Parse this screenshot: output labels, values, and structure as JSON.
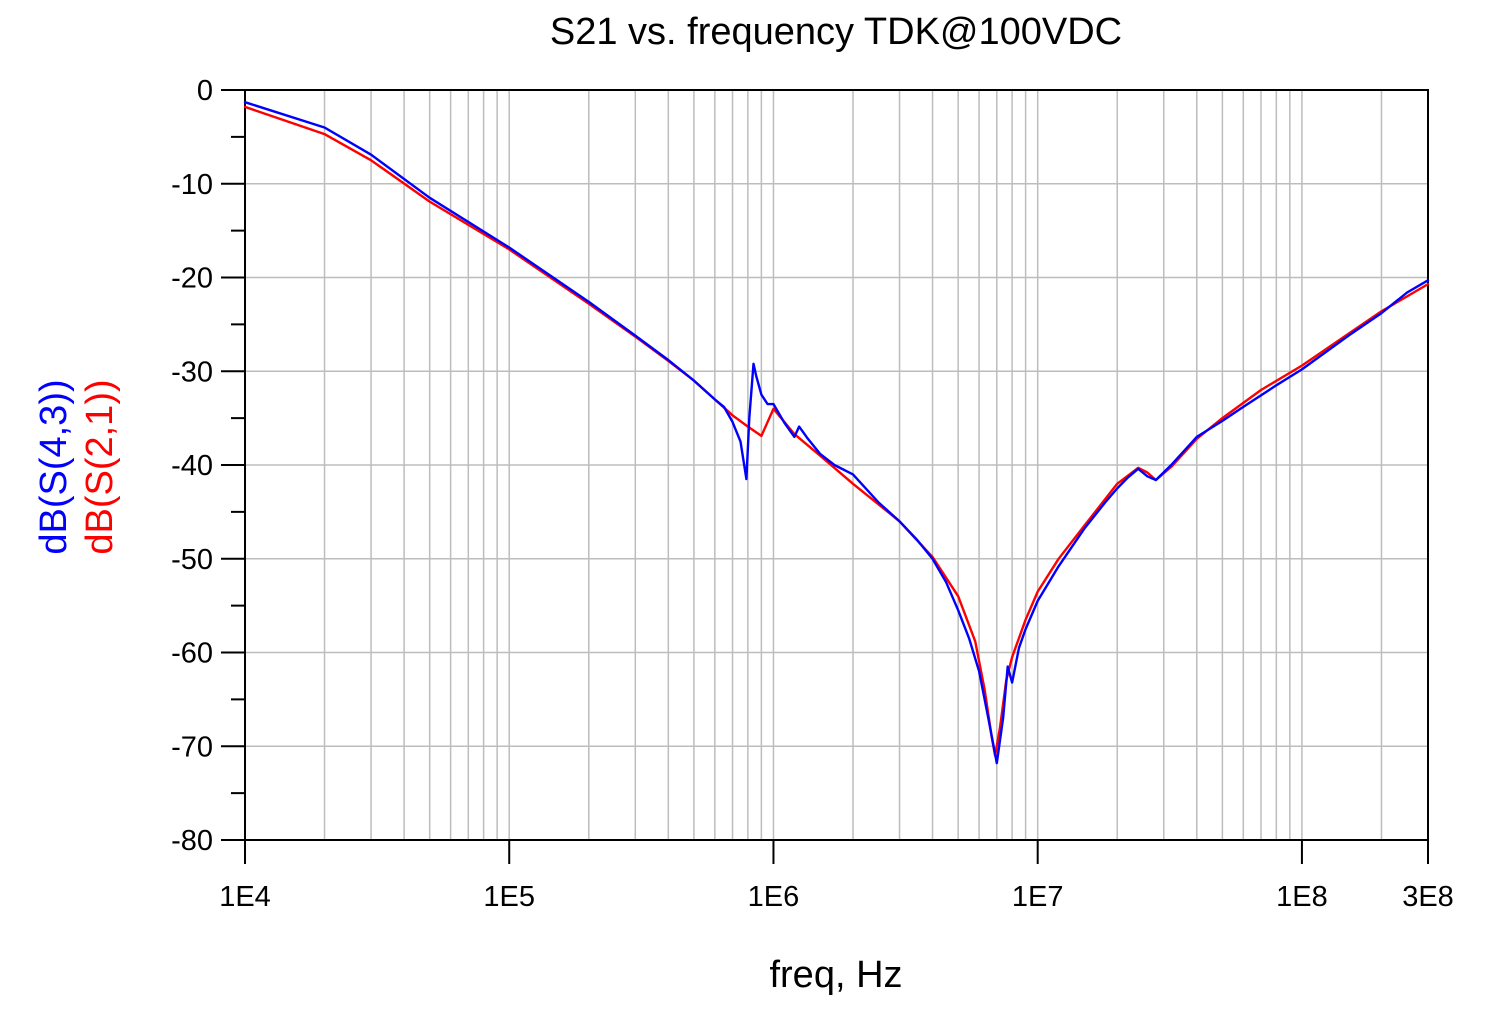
{
  "chart_data": {
    "type": "line",
    "title": "S21 vs. frequency TDK@100VDC",
    "xlabel": "freq, Hz",
    "x_scale": "log",
    "xlim": [
      10000,
      300000000
    ],
    "ylim": [
      -80,
      0
    ],
    "grid": true,
    "x_ticks": [
      {
        "value": 10000,
        "label": "1E4"
      },
      {
        "value": 100000,
        "label": "1E5"
      },
      {
        "value": 1000000,
        "label": "1E6"
      },
      {
        "value": 10000000,
        "label": "1E7"
      },
      {
        "value": 100000000,
        "label": "1E8"
      },
      {
        "value": 300000000,
        "label": "3E8"
      }
    ],
    "y_ticks": [
      {
        "value": 0,
        "label": "0"
      },
      {
        "value": -10,
        "label": "-10"
      },
      {
        "value": -20,
        "label": "-20"
      },
      {
        "value": -30,
        "label": "-30"
      },
      {
        "value": -40,
        "label": "-40"
      },
      {
        "value": -50,
        "label": "-50"
      },
      {
        "value": -60,
        "label": "-60"
      },
      {
        "value": -70,
        "label": "-70"
      },
      {
        "value": -80,
        "label": "-80"
      }
    ],
    "series": [
      {
        "name": "dB(S(4,3))",
        "color": "#0000ff",
        "points": [
          [
            10000,
            -1.3
          ],
          [
            20000,
            -4.0
          ],
          [
            30000,
            -6.9
          ],
          [
            50000,
            -11.5
          ],
          [
            100000,
            -16.8
          ],
          [
            200000,
            -22.6
          ],
          [
            300000,
            -26.2
          ],
          [
            400000,
            -28.8
          ],
          [
            500000,
            -31.0
          ],
          [
            600000,
            -33.0
          ],
          [
            650000,
            -33.8
          ],
          [
            700000,
            -35.4
          ],
          [
            750000,
            -37.5
          ],
          [
            790000,
            -41.5
          ],
          [
            810000,
            -35.0
          ],
          [
            840000,
            -29.2
          ],
          [
            860000,
            -30.5
          ],
          [
            900000,
            -32.5
          ],
          [
            950000,
            -33.5
          ],
          [
            1000000,
            -33.5
          ],
          [
            1100000,
            -35.5
          ],
          [
            1200000,
            -37.0
          ],
          [
            1250000,
            -35.9
          ],
          [
            1350000,
            -37.2
          ],
          [
            1500000,
            -38.8
          ],
          [
            1700000,
            -40.0
          ],
          [
            2000000,
            -41.0
          ],
          [
            2500000,
            -44.0
          ],
          [
            3000000,
            -46.0
          ],
          [
            3500000,
            -48.0
          ],
          [
            4000000,
            -50.0
          ],
          [
            4500000,
            -52.5
          ],
          [
            5000000,
            -55.5
          ],
          [
            5500000,
            -58.5
          ],
          [
            6000000,
            -62.0
          ],
          [
            6500000,
            -67.0
          ],
          [
            7000000,
            -71.8
          ],
          [
            7400000,
            -67.0
          ],
          [
            7700000,
            -61.5
          ],
          [
            8000000,
            -63.2
          ],
          [
            8500000,
            -59.5
          ],
          [
            9000000,
            -57.5
          ],
          [
            10000000,
            -54.5
          ],
          [
            12000000,
            -50.8
          ],
          [
            15000000,
            -46.8
          ],
          [
            18000000,
            -44.0
          ],
          [
            20000000,
            -42.5
          ],
          [
            22000000,
            -41.3
          ],
          [
            24000000,
            -40.4
          ],
          [
            26000000,
            -41.2
          ],
          [
            28000000,
            -41.6
          ],
          [
            32000000,
            -40.0
          ],
          [
            40000000,
            -37.0
          ],
          [
            50000000,
            -35.3
          ],
          [
            60000000,
            -33.8
          ],
          [
            80000000,
            -31.5
          ],
          [
            100000000,
            -29.8
          ],
          [
            150000000,
            -26.2
          ],
          [
            200000000,
            -23.8
          ],
          [
            250000000,
            -21.6
          ],
          [
            300000000,
            -20.3
          ]
        ]
      },
      {
        "name": "dB(S(2,1))",
        "color": "#ff0000",
        "points": [
          [
            10000,
            -1.8
          ],
          [
            20000,
            -4.7
          ],
          [
            30000,
            -7.5
          ],
          [
            50000,
            -11.9
          ],
          [
            100000,
            -17.0
          ],
          [
            200000,
            -22.8
          ],
          [
            300000,
            -26.3
          ],
          [
            400000,
            -28.9
          ],
          [
            500000,
            -31.0
          ],
          [
            600000,
            -33.0
          ],
          [
            700000,
            -34.7
          ],
          [
            800000,
            -35.9
          ],
          [
            900000,
            -36.9
          ],
          [
            1000000,
            -34.0
          ],
          [
            1200000,
            -36.7
          ],
          [
            1500000,
            -39.0
          ],
          [
            2000000,
            -42.0
          ],
          [
            3000000,
            -46.0
          ],
          [
            4000000,
            -49.8
          ],
          [
            5000000,
            -54.0
          ],
          [
            5800000,
            -58.8
          ],
          [
            6300000,
            -64.0
          ],
          [
            6700000,
            -69.0
          ],
          [
            6900000,
            -71.0
          ],
          [
            7200000,
            -68.0
          ],
          [
            7600000,
            -63.0
          ],
          [
            8000000,
            -60.5
          ],
          [
            9000000,
            -56.5
          ],
          [
            10000000,
            -53.5
          ],
          [
            12000000,
            -50.0
          ],
          [
            15000000,
            -46.5
          ],
          [
            20000000,
            -42.0
          ],
          [
            24000000,
            -40.3
          ],
          [
            26000000,
            -40.8
          ],
          [
            28000000,
            -41.6
          ],
          [
            32000000,
            -40.2
          ],
          [
            40000000,
            -37.2
          ],
          [
            50000000,
            -35.0
          ],
          [
            70000000,
            -32.0
          ],
          [
            100000000,
            -29.4
          ],
          [
            150000000,
            -26.0
          ],
          [
            200000000,
            -23.6
          ],
          [
            300000000,
            -20.7
          ]
        ]
      }
    ]
  }
}
